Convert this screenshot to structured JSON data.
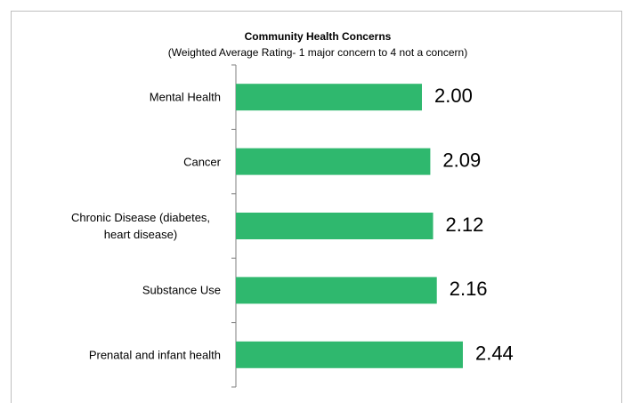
{
  "chart_data": {
    "type": "hbar",
    "title": "Community Health Concerns",
    "subtitle": "(Weighted Average Rating- 1 major concern to 4 not a concern)",
    "categories": [
      "Mental Health",
      "Cancer",
      "Chronic Disease (diabetes, heart disease)",
      "Substance Use",
      "Prenatal and infant health"
    ],
    "values": [
      2.0,
      2.09,
      2.12,
      2.16,
      2.44
    ],
    "value_labels": [
      "2.00",
      "2.09",
      "2.12",
      "2.16",
      "2.44"
    ],
    "color": "#2fb86e",
    "xlim": [
      0,
      4
    ]
  }
}
